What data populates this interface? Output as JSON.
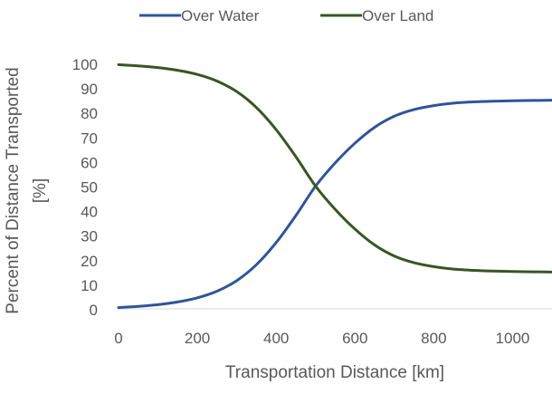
{
  "chart_data": {
    "type": "line",
    "title": "",
    "xlabel": "Transportation Distance [km]",
    "ylabel_lines": [
      "Percent of Distance Transported",
      "[%]"
    ],
    "xlim": [
      0,
      1100
    ],
    "ylim": [
      0,
      100
    ],
    "x_ticks": [
      0,
      200,
      400,
      600,
      800,
      1000
    ],
    "y_ticks": [
      0,
      10,
      20,
      30,
      40,
      50,
      60,
      70,
      80,
      90,
      100
    ],
    "grid": false,
    "legend_position": "top",
    "series": [
      {
        "name": "Over Water",
        "color": "#2f5597",
        "x": [
          0,
          50,
          100,
          150,
          200,
          250,
          300,
          350,
          400,
          450,
          500,
          550,
          600,
          650,
          700,
          750,
          800,
          850,
          900,
          950,
          1000,
          1050,
          1100
        ],
        "y": [
          0.5,
          1,
          1.7,
          2.8,
          4.5,
          7.2,
          11.5,
          18,
          27,
          38,
          50,
          59.5,
          67.5,
          74,
          78.5,
          81.2,
          82.8,
          83.8,
          84.3,
          84.6,
          84.8,
          84.9,
          85
        ]
      },
      {
        "name": "Over Land",
        "color": "#375623",
        "x": [
          0,
          50,
          100,
          150,
          200,
          250,
          300,
          350,
          400,
          450,
          500,
          550,
          600,
          650,
          700,
          750,
          800,
          850,
          900,
          950,
          1000,
          1050,
          1100
        ],
        "y": [
          99.5,
          99,
          98.3,
          97.2,
          95.5,
          92.8,
          88.5,
          82,
          73,
          62,
          50,
          40.5,
          32.5,
          26,
          21.5,
          18.8,
          17.2,
          16.2,
          15.7,
          15.4,
          15.2,
          15.1,
          15
        ]
      }
    ]
  }
}
